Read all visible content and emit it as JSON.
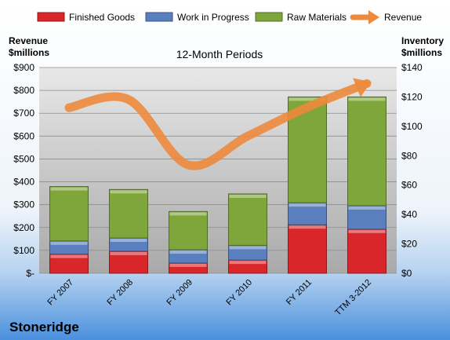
{
  "chart_data": {
    "type": "bar",
    "subtitle": "12-Month Periods",
    "company": "Stoneridge",
    "left_axis_label": [
      "Revenue",
      "$millions"
    ],
    "right_axis_label": [
      "Inventory",
      "$millions"
    ],
    "categories": [
      "FY 2007",
      "FY 2008",
      "FY 2009",
      "FY 2010",
      "FY 2011",
      "TTM 3-2012"
    ],
    "stacked_series": [
      {
        "name": "Finished Goods",
        "color": "#d9262b",
        "values": [
          13,
          15,
          7,
          9,
          33,
          30
        ]
      },
      {
        "name": "Work in Progress",
        "color": "#5a7fbf",
        "values": [
          9,
          9,
          9,
          10,
          15,
          16
        ]
      },
      {
        "name": "Raw Materials",
        "color": "#7ea63a",
        "values": [
          37,
          33,
          26,
          35,
          72,
          74
        ]
      }
    ],
    "line_series": {
      "name": "Revenue",
      "color": "#ed8a3c",
      "values": [
        724,
        760,
        474,
        600,
        726,
        830
      ]
    },
    "y_left": {
      "min": 0,
      "max": 900,
      "step": 100,
      "tick_labels": [
        "$-",
        "$100",
        "$200",
        "$300",
        "$400",
        "$500",
        "$600",
        "$700",
        "$800",
        "$900"
      ]
    },
    "y_right": {
      "min": 0,
      "max": 140,
      "step": 20,
      "tick_labels": [
        "$0",
        "$20",
        "$40",
        "$60",
        "$80",
        "$100",
        "$120",
        "$140"
      ]
    },
    "grid": true,
    "legend_position": "top"
  }
}
